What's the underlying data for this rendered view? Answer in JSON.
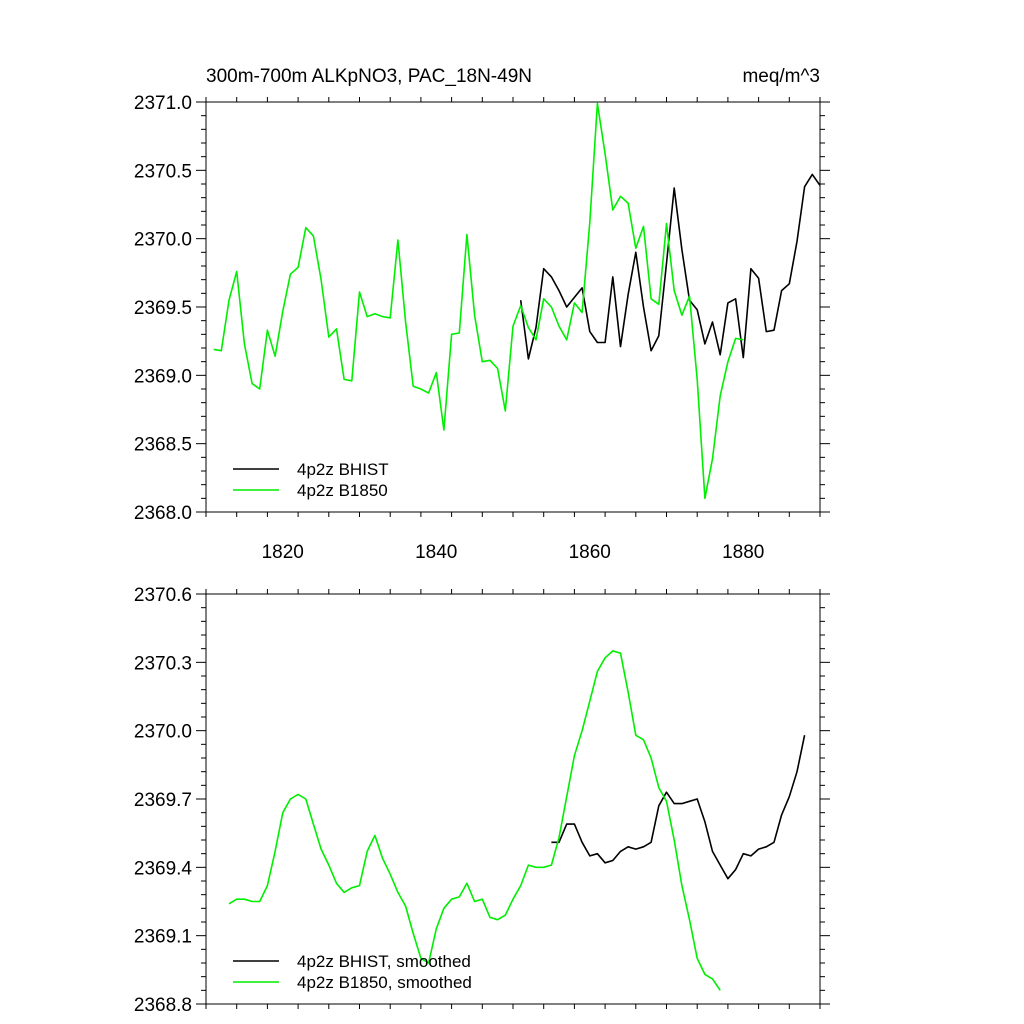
{
  "chart_data": [
    {
      "type": "line",
      "title": "300m-700m ALKpNO3, PAC_18N-49N",
      "units": "meq/m^3",
      "xlim": [
        1810,
        1890
      ],
      "ylim": [
        2368.0,
        2371.0
      ],
      "xticks": [
        1820,
        1840,
        1860,
        1880
      ],
      "xtick_labels": [
        "1820",
        "1840",
        "1860",
        "1880"
      ],
      "yticks": [
        2368.0,
        2368.5,
        2369.0,
        2369.5,
        2370.0,
        2370.5,
        2371.0
      ],
      "ytick_labels": [
        "2368.0",
        "2368.5",
        "2369.0",
        "2369.5",
        "2370.0",
        "2370.5",
        "2371.0"
      ],
      "legend_position": "bottom-left",
      "series": [
        {
          "name": "4p2z BHIST",
          "color": "#000000",
          "x_start": 1851,
          "values": [
            2369.55,
            2369.12,
            2369.35,
            2369.78,
            2369.72,
            2369.62,
            2369.5,
            2369.57,
            2369.64,
            2369.32,
            2369.24,
            2369.24,
            2369.72,
            2369.21,
            2369.59,
            2369.9,
            2369.5,
            2369.18,
            2369.29,
            2369.82,
            2370.37,
            2369.92,
            2369.55,
            2369.48,
            2369.23,
            2369.39,
            2369.15,
            2369.53,
            2369.56,
            2369.13,
            2369.78,
            2369.71,
            2369.32,
            2369.33,
            2369.62,
            2369.67,
            2369.98,
            2370.38,
            2370.47,
            2370.39
          ]
        },
        {
          "name": "4p2z B1850",
          "color": "#00ee00",
          "x_start": 1811,
          "values": [
            2369.19,
            2369.18,
            2369.55,
            2369.76,
            2369.23,
            2368.94,
            2368.9,
            2369.33,
            2369.14,
            2369.47,
            2369.74,
            2369.79,
            2370.08,
            2370.02,
            2369.7,
            2369.28,
            2369.34,
            2368.97,
            2368.96,
            2369.61,
            2369.43,
            2369.45,
            2369.43,
            2369.42,
            2369.99,
            2369.39,
            2368.92,
            2368.9,
            2368.87,
            2369.02,
            2368.6,
            2369.3,
            2369.31,
            2370.03,
            2369.44,
            2369.1,
            2369.11,
            2369.05,
            2368.74,
            2369.36,
            2369.51,
            2369.35,
            2369.26,
            2369.56,
            2369.5,
            2369.36,
            2369.26,
            2369.53,
            2369.46,
            2370.12,
            2370.99,
            2370.62,
            2370.21,
            2370.31,
            2370.26,
            2369.93,
            2370.09,
            2369.56,
            2369.52,
            2370.11,
            2369.62,
            2369.44,
            2369.58,
            2368.97,
            2368.1,
            2368.39,
            2368.85,
            2369.1,
            2369.27,
            2369.26
          ]
        }
      ]
    },
    {
      "type": "line",
      "title": "",
      "xlim": [
        1810,
        1890
      ],
      "ylim": [
        2368.8,
        2370.6
      ],
      "xticks": [
        1820,
        1840,
        1860,
        1880
      ],
      "yticks": [
        2368.8,
        2369.1,
        2369.4,
        2369.7,
        2370.0,
        2370.3,
        2370.6
      ],
      "ytick_labels": [
        "2368.8",
        "2369.1",
        "2369.4",
        "2369.7",
        "2370.0",
        "2370.3",
        "2370.6"
      ],
      "legend_position": "bottom-left",
      "series": [
        {
          "name": "4p2z BHIST, smoothed",
          "color": "#000000",
          "x_start": 1855,
          "values": [
            2369.51,
            2369.51,
            2369.59,
            2369.59,
            2369.51,
            2369.45,
            2369.46,
            2369.42,
            2369.43,
            2369.47,
            2369.49,
            2369.48,
            2369.49,
            2369.51,
            2369.67,
            2369.73,
            2369.68,
            2369.68,
            2369.69,
            2369.7,
            2369.6,
            2369.47,
            2369.41,
            2369.35,
            2369.39,
            2369.46,
            2369.45,
            2369.48,
            2369.49,
            2369.51,
            2369.63,
            2369.71,
            2369.82,
            2369.98
          ]
        },
        {
          "name": "4p2z B1850, smoothed",
          "color": "#00ee00",
          "x_start": 1813,
          "values": [
            2369.24,
            2369.26,
            2369.26,
            2369.25,
            2369.25,
            2369.32,
            2369.47,
            2369.64,
            2369.7,
            2369.72,
            2369.7,
            2369.59,
            2369.48,
            2369.41,
            2369.33,
            2369.29,
            2369.31,
            2369.32,
            2369.47,
            2369.54,
            2369.44,
            2369.37,
            2369.29,
            2369.23,
            2369.11,
            2369.0,
            2368.98,
            2369.13,
            2369.22,
            2369.26,
            2369.27,
            2369.33,
            2369.25,
            2369.26,
            2369.18,
            2369.17,
            2369.19,
            2369.26,
            2369.32,
            2369.41,
            2369.4,
            2369.4,
            2369.41,
            2369.53,
            2369.71,
            2369.89,
            2370.0,
            2370.13,
            2370.26,
            2370.32,
            2370.35,
            2370.34,
            2370.17,
            2369.98,
            2369.96,
            2369.88,
            2369.75,
            2369.69,
            2369.52,
            2369.32,
            2369.17,
            2369.0,
            2368.93,
            2368.91,
            2368.86
          ]
        }
      ]
    }
  ]
}
